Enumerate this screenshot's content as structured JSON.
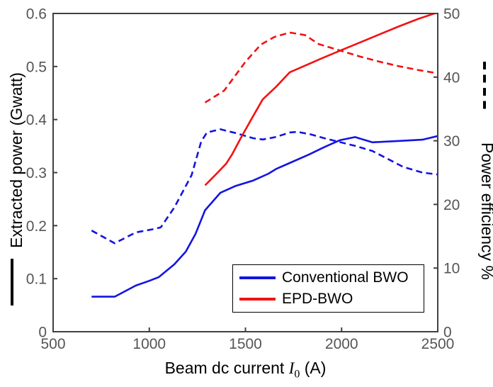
{
  "colors": {
    "blue": "#1414e0",
    "red": "#f21212",
    "spine": "#404040",
    "tick_label": "#555555",
    "text": "#000000"
  },
  "legend": {
    "items": [
      {
        "label": "Conventional BWO",
        "color_key": "blue"
      },
      {
        "label": "EPD-BWO",
        "color_key": "red"
      }
    ]
  },
  "chart_data": {
    "type": "line",
    "title": "",
    "grid": false,
    "legend_position": "lower right",
    "xlabel": {
      "prefix": "Beam dc current ",
      "symbol": "I",
      "subscript": "0",
      "suffix": " (A)"
    },
    "xlim": [
      500,
      2500
    ],
    "x_ticks": [
      500,
      1000,
      1500,
      2000,
      2500
    ],
    "x_tick_labels": [
      "500",
      "1000",
      "1500",
      "2000",
      "2500"
    ],
    "left_axis": {
      "label": "Extracted power (Gwatt)",
      "lim": [
        0,
        0.6
      ],
      "ticks": [
        0,
        0.1,
        0.2,
        0.3,
        0.4,
        0.5,
        0.6
      ],
      "tick_labels": [
        "0",
        "0.1",
        "0.2",
        "0.3",
        "0.4",
        "0.5",
        "0.6"
      ],
      "line_style_meaning": "solid"
    },
    "right_axis": {
      "label": "Power efficiency %",
      "lim": [
        0,
        50
      ],
      "ticks": [
        0,
        10,
        20,
        30,
        40,
        50
      ],
      "tick_labels": [
        "0",
        "10",
        "20",
        "30",
        "40",
        "50"
      ],
      "line_style_meaning": "dashed"
    },
    "series": [
      {
        "name": "conventional-bwo-efficiency",
        "legend_label": "Conventional BWO",
        "color_key": "blue",
        "style": "dashed",
        "axis": "right",
        "x": [
          700,
          820,
          930,
          1020,
          1060,
          1130,
          1220,
          1270,
          1300,
          1370,
          1450,
          1540,
          1590,
          1660,
          1730,
          1770,
          1840,
          1910,
          1990,
          2070,
          2160,
          2320,
          2420,
          2500
        ],
        "y": [
          15.9,
          13.9,
          15.6,
          16.1,
          16.4,
          19.5,
          24.6,
          29.9,
          31.3,
          31.8,
          31.2,
          30.4,
          30.2,
          30.6,
          31.3,
          31.4,
          31.0,
          30.4,
          29.8,
          29.2,
          28.4,
          25.9,
          25.0,
          24.7
        ]
      },
      {
        "name": "conventional-bwo-power",
        "legend_label": "Conventional BWO",
        "color_key": "blue",
        "style": "solid",
        "axis": "left",
        "x": [
          700,
          820,
          930,
          1000,
          1050,
          1130,
          1190,
          1240,
          1290,
          1370,
          1450,
          1540,
          1620,
          1660,
          1730,
          1830,
          1910,
          1990,
          2070,
          2160,
          2320,
          2420,
          2500
        ],
        "y": [
          0.066,
          0.066,
          0.087,
          0.096,
          0.103,
          0.127,
          0.151,
          0.184,
          0.229,
          0.262,
          0.275,
          0.285,
          0.298,
          0.307,
          0.318,
          0.334,
          0.348,
          0.361,
          0.367,
          0.357,
          0.36,
          0.362,
          0.369
        ]
      },
      {
        "name": "epd-bwo-efficiency",
        "legend_label": "EPD-BWO",
        "color_key": "red",
        "style": "dashed",
        "axis": "right",
        "x": [
          1290,
          1390,
          1500,
          1580,
          1650,
          1730,
          1810,
          1880,
          1990,
          2100,
          2200,
          2300,
          2400,
          2500
        ],
        "y": [
          36.0,
          37.9,
          42.4,
          45.1,
          46.3,
          47.0,
          46.6,
          45.2,
          44.2,
          43.2,
          42.4,
          41.7,
          41.1,
          40.6
        ]
      },
      {
        "name": "epd-bwo-power",
        "legend_label": "EPD-BWO",
        "color_key": "red",
        "style": "solid",
        "axis": "left",
        "x": [
          1290,
          1350,
          1400,
          1430,
          1480,
          1530,
          1590,
          1660,
          1730,
          1800,
          1900,
          2000,
          2100,
          2200,
          2300,
          2400,
          2500
        ],
        "y": [
          0.276,
          0.298,
          0.317,
          0.334,
          0.368,
          0.4,
          0.438,
          0.462,
          0.489,
          0.5,
          0.516,
          0.531,
          0.546,
          0.561,
          0.576,
          0.59,
          0.602
        ]
      }
    ]
  }
}
